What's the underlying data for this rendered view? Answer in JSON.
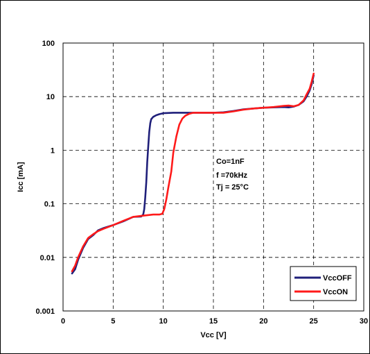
{
  "chart_data": {
    "type": "line",
    "xlabel": "Vcc [V]",
    "ylabel": "Icc [mA]",
    "xlim": [
      0,
      30
    ],
    "ylim": [
      0.001,
      100
    ],
    "yscale": "log",
    "x_ticks": [
      "0",
      "5",
      "10",
      "15",
      "20",
      "25",
      "30"
    ],
    "y_ticks": [
      "0.001",
      "0.01",
      "0.1",
      "1",
      "10",
      "100"
    ],
    "grid": true,
    "grid_style": "dashed",
    "legend_position": "bottom-right",
    "annotations": [
      "Co=1nF",
      "f =70kHz",
      "Tj = 25°C"
    ],
    "series": [
      {
        "name": "VccOFF",
        "color": "#1f1f7a",
        "x": [
          0.9,
          1.2,
          1.5,
          2,
          2.5,
          3,
          3.5,
          4,
          5,
          6,
          7,
          7.8,
          8.0,
          8.1,
          8.2,
          8.3,
          8.4,
          8.5,
          8.6,
          8.7,
          8.8,
          9.0,
          9.3,
          9.6,
          10,
          11,
          12,
          13,
          14,
          15,
          16,
          17,
          18,
          19,
          20,
          21,
          22,
          22.5,
          23,
          23.5,
          24,
          24.3,
          24.6,
          24.8,
          25
        ],
        "y": [
          0.005,
          0.006,
          0.009,
          0.015,
          0.022,
          0.026,
          0.032,
          0.035,
          0.04,
          0.047,
          0.057,
          0.058,
          0.063,
          0.08,
          0.13,
          0.25,
          0.6,
          1.2,
          2.2,
          3.2,
          3.8,
          4.2,
          4.5,
          4.7,
          4.9,
          5.0,
          5.0,
          5.0,
          5.0,
          5.0,
          5.1,
          5.4,
          5.8,
          6.0,
          6.2,
          6.3,
          6.4,
          6.3,
          6.5,
          7.0,
          8.2,
          10.0,
          13.0,
          17.0,
          25.0
        ]
      },
      {
        "name": "VccON",
        "color": "#ff1a1a",
        "x": [
          0.9,
          1.2,
          1.5,
          2,
          2.5,
          3,
          3.5,
          4,
          5,
          6,
          7,
          8,
          9,
          9.6,
          9.9,
          10.1,
          10.3,
          10.5,
          10.8,
          11.0,
          11.3,
          11.6,
          11.9,
          12.2,
          12.6,
          13,
          14,
          15,
          16,
          17,
          18,
          19,
          20,
          21,
          22,
          22.5,
          23,
          23.5,
          24,
          24.3,
          24.6,
          24.8,
          25
        ],
        "y": [
          0.0055,
          0.007,
          0.01,
          0.016,
          0.023,
          0.027,
          0.031,
          0.034,
          0.04,
          0.048,
          0.057,
          0.06,
          0.063,
          0.063,
          0.065,
          0.08,
          0.12,
          0.2,
          0.4,
          0.9,
          1.8,
          3.0,
          3.9,
          4.4,
          4.8,
          5.0,
          5.0,
          5.0,
          5.0,
          5.3,
          5.7,
          6.0,
          6.2,
          6.4,
          6.7,
          6.8,
          6.6,
          7.0,
          8.5,
          11.0,
          14.0,
          19.0,
          27.0
        ]
      }
    ]
  }
}
